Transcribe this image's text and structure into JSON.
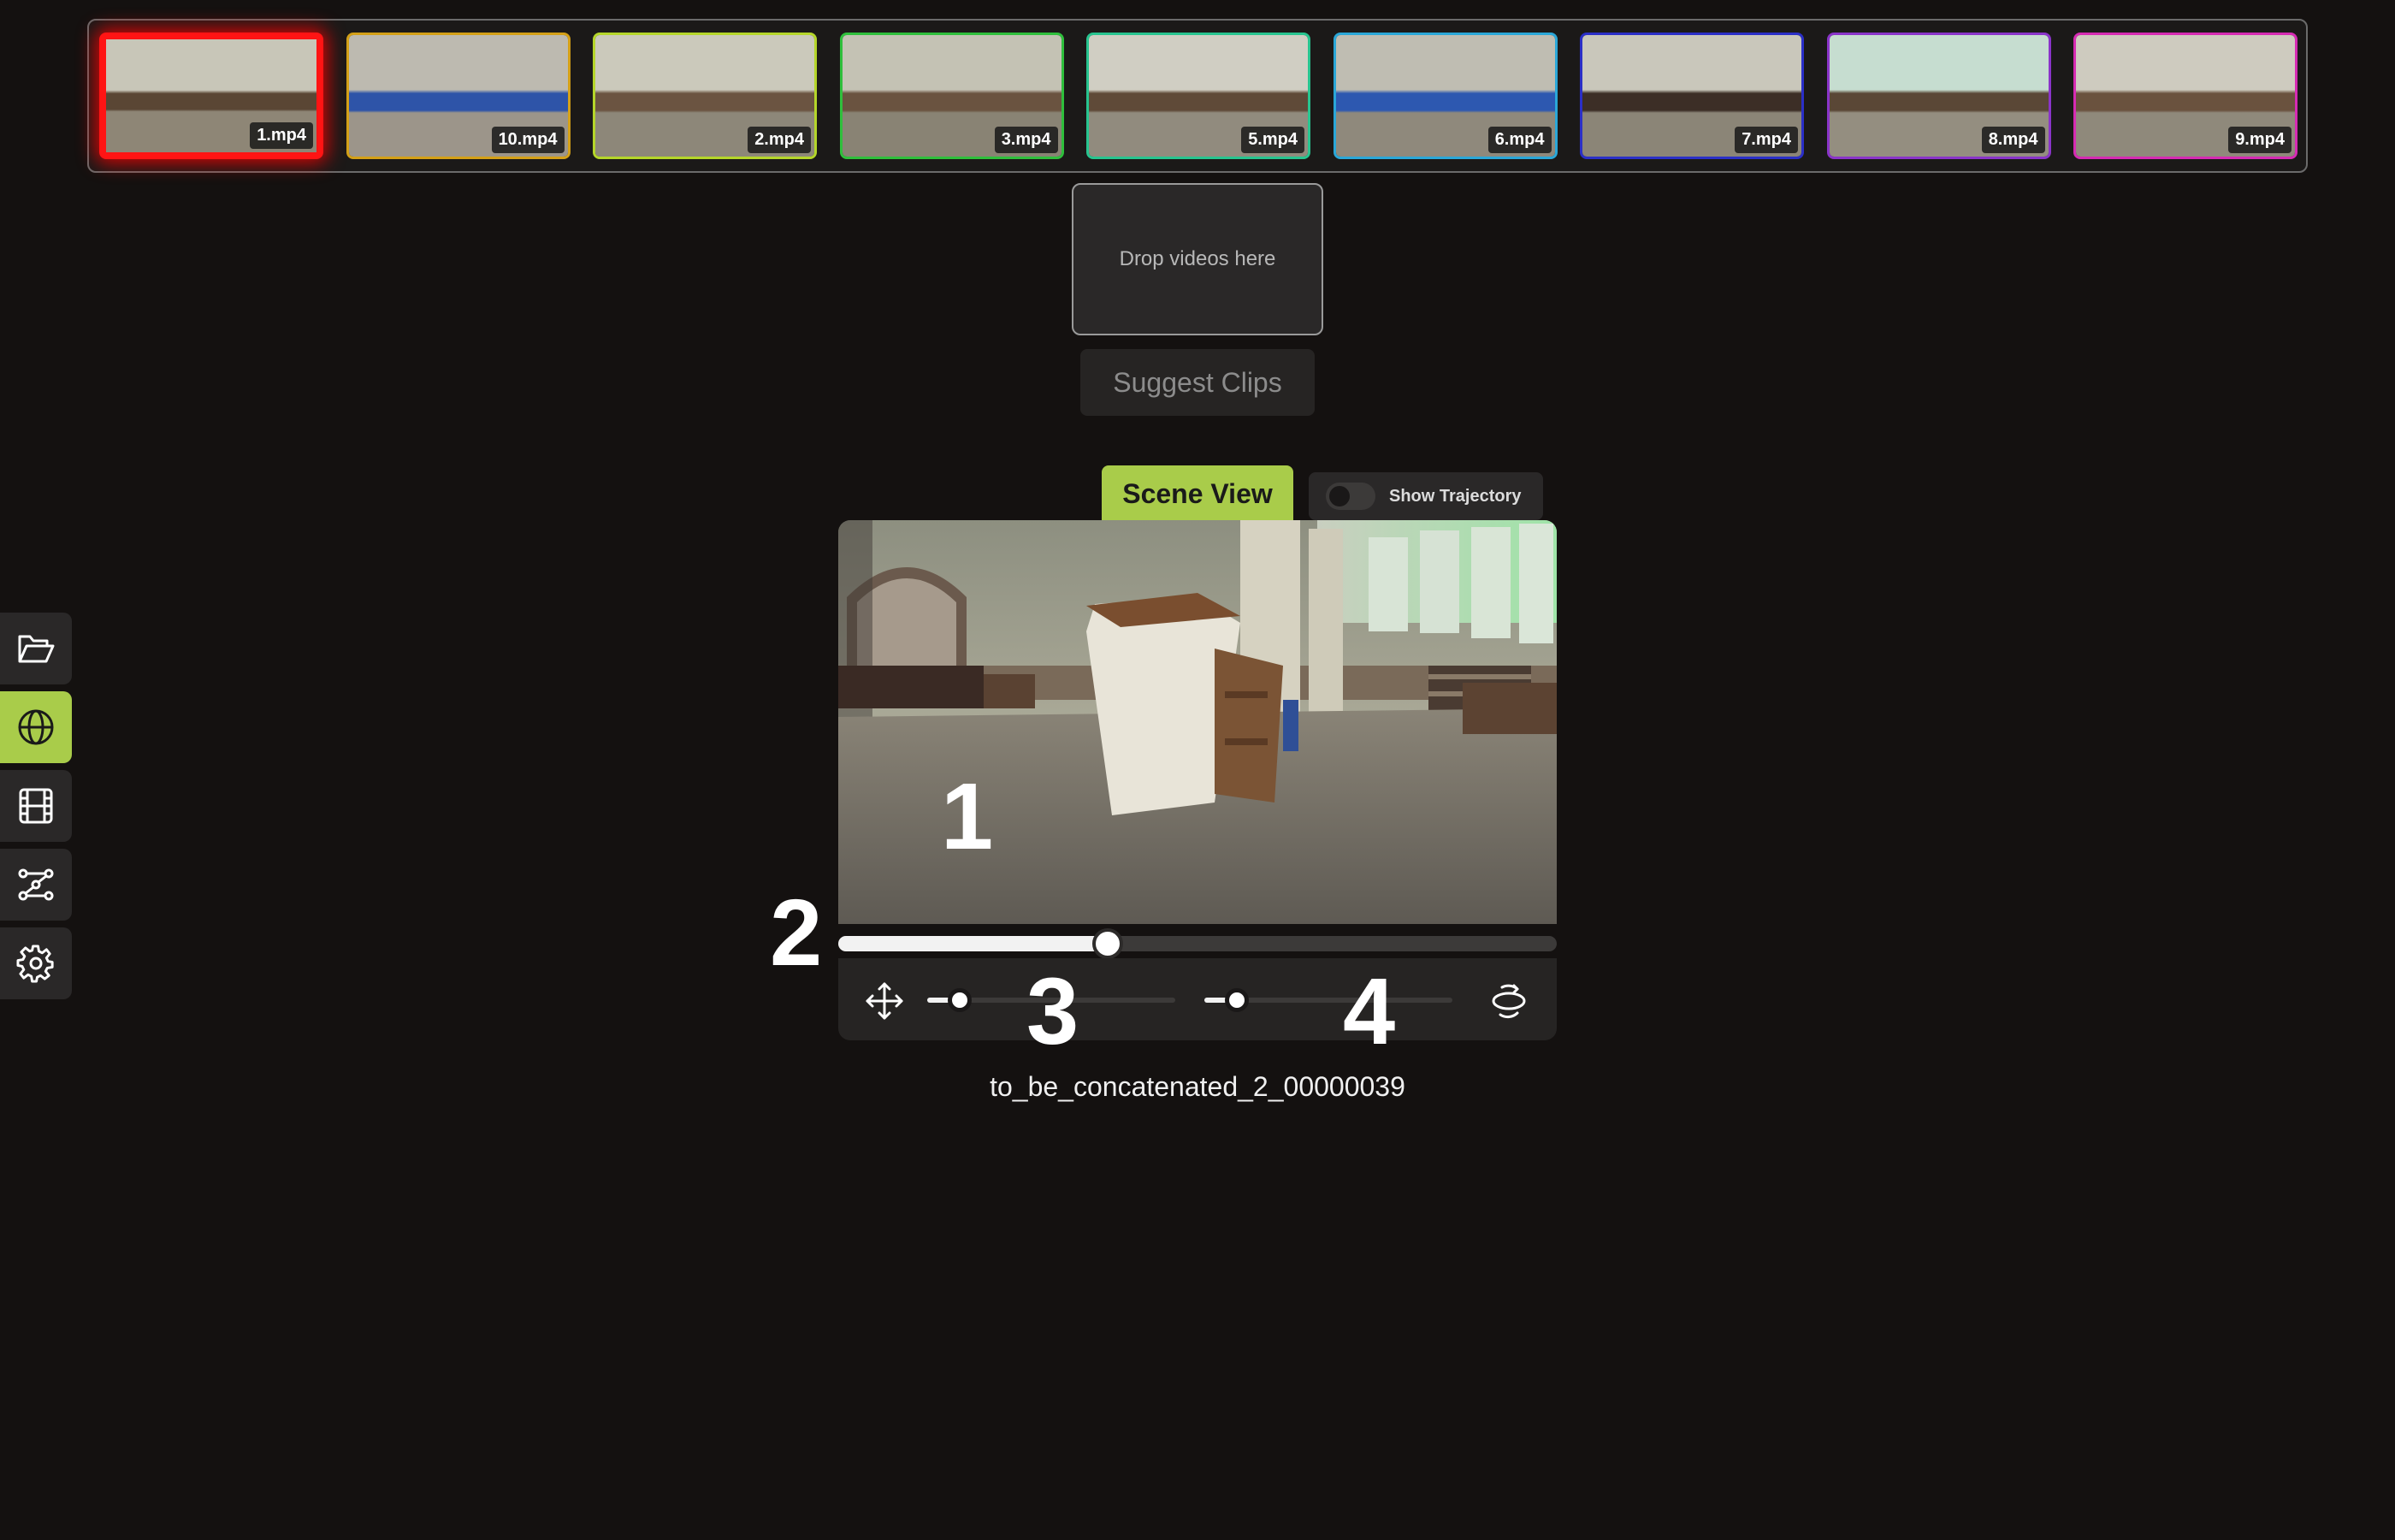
{
  "filmstrip": {
    "thumbnails": [
      {
        "label": "1.mp4",
        "border_color": "#ff1414",
        "selected": true
      },
      {
        "label": "10.mp4",
        "border_color": "#d4a017",
        "selected": false
      },
      {
        "label": "2.mp4",
        "border_color": "#b5d62a",
        "selected": false
      },
      {
        "label": "3.mp4",
        "border_color": "#2fbf3c",
        "selected": false
      },
      {
        "label": "5.mp4",
        "border_color": "#27c48f",
        "selected": false
      },
      {
        "label": "6.mp4",
        "border_color": "#2aa7d8",
        "selected": false
      },
      {
        "label": "7.mp4",
        "border_color": "#2b2fc7",
        "selected": false
      },
      {
        "label": "8.mp4",
        "border_color": "#8a34c9",
        "selected": false
      },
      {
        "label": "9.mp4",
        "border_color": "#d62bb3",
        "selected": false
      }
    ]
  },
  "drop_zone": {
    "text": "Drop videos here"
  },
  "suggest_button": {
    "label": "Suggest Clips"
  },
  "viewer_tabs": {
    "scene_view_label": "Scene View",
    "trajectory_label": "Show Trajectory",
    "trajectory_on": false
  },
  "markers": {
    "m1": "1",
    "m2": "2",
    "m3": "3",
    "m4": "4"
  },
  "timeline": {
    "progress": 0.375
  },
  "controls": {
    "move_slider": 0.13,
    "rotate_slider": 0.13
  },
  "frame_name": "to_be_concatenated_2_00000039",
  "toolbar": {
    "items": [
      {
        "name": "folder-open-icon",
        "active": false
      },
      {
        "name": "globe-icon",
        "active": true
      },
      {
        "name": "film-icon",
        "active": false
      },
      {
        "name": "graph-nodes-icon",
        "active": false
      },
      {
        "name": "gear-icon",
        "active": false
      }
    ]
  },
  "colors": {
    "accent": "#a9cc4a",
    "selected": "#ff1414",
    "background": "#141110"
  }
}
